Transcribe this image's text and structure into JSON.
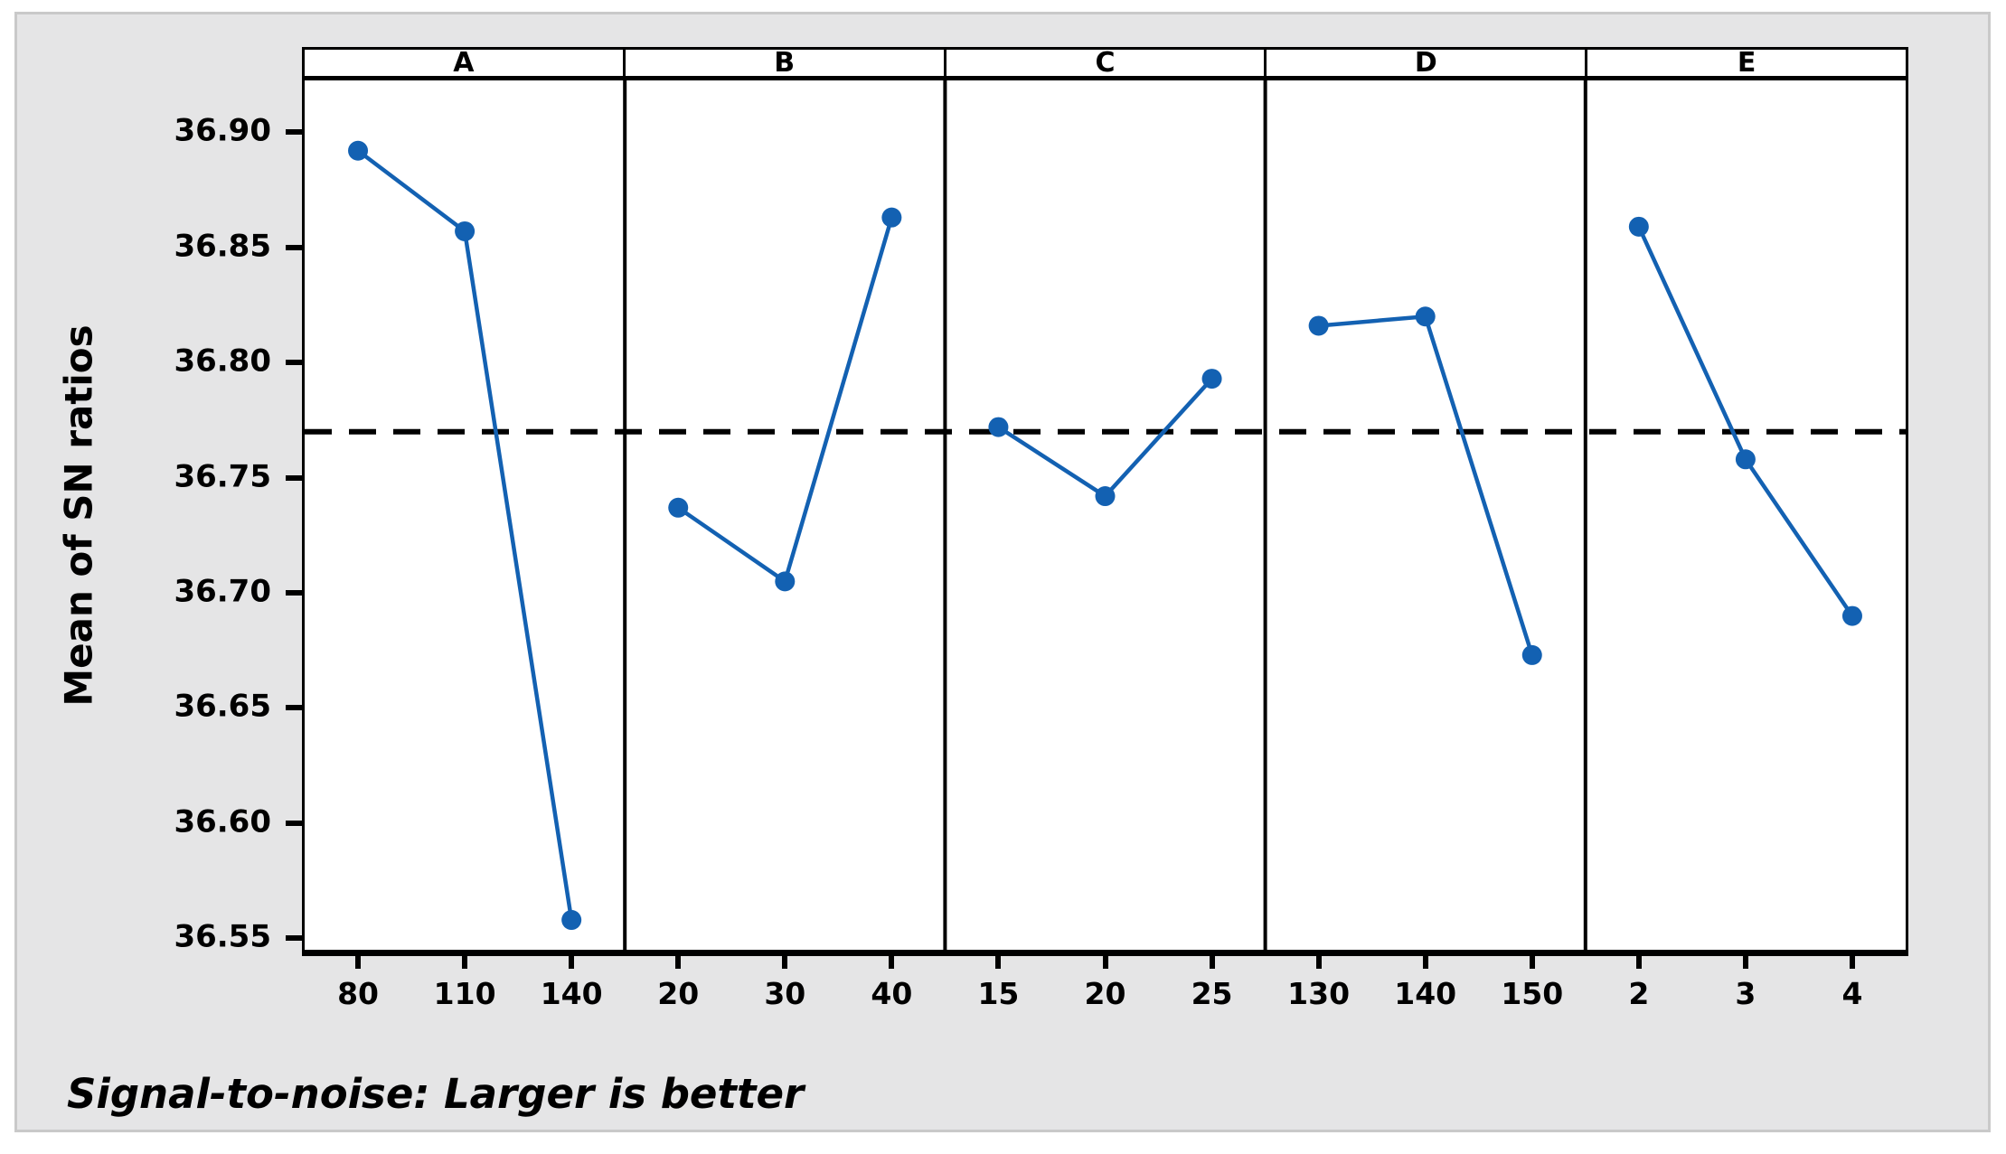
{
  "figure": {
    "y_axis_title": "Mean of SN ratios",
    "footer": "Signal-to-noise: Larger is better",
    "colors": {
      "series_line": "#1361b2",
      "marker": "#1361b2",
      "reference_line": "#000000",
      "panel_background": "#ffffff",
      "canvas_background": "#e5e5e6",
      "canvas_border": "#c9c9c9",
      "frame": "#000000",
      "text": "#000000"
    }
  },
  "chart_data": {
    "type": "line",
    "title": "",
    "xlabel": "",
    "ylabel": "Mean of SN ratios",
    "footnote": "Signal-to-noise: Larger is better",
    "ylim": [
      36.5415,
      36.9205
    ],
    "yticks": [
      36.9,
      36.85,
      36.8,
      36.75,
      36.7,
      36.65,
      36.6,
      36.55
    ],
    "ytick_format_decimals": 2,
    "grid": "off",
    "legend_position": "none",
    "reference_line": {
      "value": 36.768,
      "style": "dashed",
      "meaning": "overall mean of SN ratios"
    },
    "panels": [
      {
        "label": "A",
        "levels": [
          "80",
          "110",
          "140"
        ],
        "values": [
          36.89,
          36.855,
          36.556
        ]
      },
      {
        "label": "B",
        "levels": [
          "20",
          "30",
          "40"
        ],
        "values": [
          36.735,
          36.703,
          36.861
        ]
      },
      {
        "label": "C",
        "levels": [
          "15",
          "20",
          "25"
        ],
        "values": [
          36.77,
          36.74,
          36.791
        ]
      },
      {
        "label": "D",
        "levels": [
          "130",
          "140",
          "150"
        ],
        "values": [
          36.814,
          36.818,
          36.671
        ]
      },
      {
        "label": "E",
        "levels": [
          "2",
          "3",
          "4"
        ],
        "values": [
          36.857,
          36.756,
          36.688
        ]
      }
    ]
  }
}
